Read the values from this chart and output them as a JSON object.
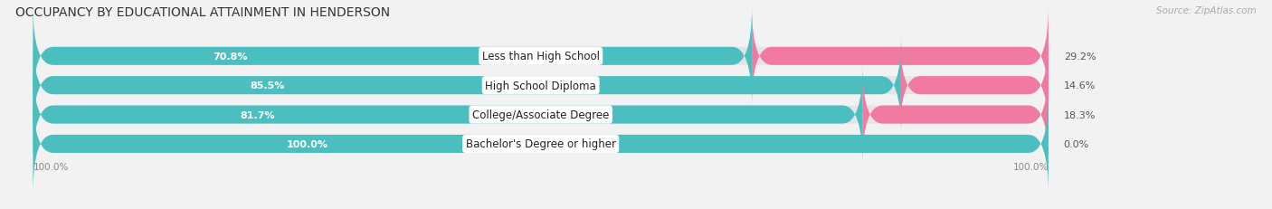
{
  "title": "OCCUPANCY BY EDUCATIONAL ATTAINMENT IN HENDERSON",
  "source": "Source: ZipAtlas.com",
  "categories": [
    "Less than High School",
    "High School Diploma",
    "College/Associate Degree",
    "Bachelor's Degree or higher"
  ],
  "owner_values": [
    70.8,
    85.5,
    81.7,
    100.0
  ],
  "renter_values": [
    29.2,
    14.6,
    18.3,
    0.0
  ],
  "owner_color": "#4bbfbf",
  "renter_color": "#f07aa0",
  "renter_color_light": "#f5b8ce",
  "bar_height": 0.62,
  "background_color": "#f2f2f2",
  "bar_background": "#e4e4e4",
  "title_fontsize": 10,
  "label_fontsize": 8.5,
  "value_fontsize": 8.0,
  "tick_fontsize": 7.5,
  "legend_fontsize": 8.0,
  "source_fontsize": 7.5
}
